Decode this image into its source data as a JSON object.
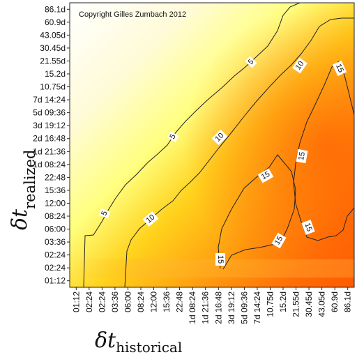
{
  "chart_data": {
    "type": "heatmap",
    "copyright": "Copyright Gilles Zumbach 2012",
    "xlabel": {
      "symbol": "δt",
      "subscript": "historical"
    },
    "ylabel": {
      "symbol": "δt",
      "subscript": "realized"
    },
    "x_ticks": [
      "01:12",
      "02:24",
      "02:24",
      "03:36",
      "06:00",
      "08:24",
      "12:00",
      "15:36",
      "22:48",
      "1d 08:24",
      "1d 21:36",
      "2d 16:48",
      "3d 19:12",
      "5d 09:36",
      "7d 14:24",
      "10.75d",
      "15.2d",
      "21.55d",
      "30.45d",
      "43.05d",
      "60.9d",
      "86.1d"
    ],
    "y_ticks": [
      "01:12",
      "02:24",
      "02:24",
      "03:36",
      "06:00",
      "08:24",
      "12:00",
      "15:36",
      "22:48",
      "1d 08:24",
      "1d 21:36",
      "2d 16:48",
      "3d 19:12",
      "5d 09:36",
      "7d 14:24",
      "10.75d",
      "15.2d",
      "21.55d",
      "30.45d",
      "43.05d",
      "60.9d",
      "86.1d"
    ],
    "contour_levels": [
      5,
      10,
      15
    ],
    "contour_labels": [
      "5",
      "5",
      "5",
      "10",
      "10",
      "10",
      "15",
      "15",
      "15",
      "15",
      "15",
      "15"
    ],
    "colors": {
      "low": "#ffffff",
      "mid": "#ffff55",
      "high": "#ff6a00",
      "line": "#222222"
    }
  }
}
